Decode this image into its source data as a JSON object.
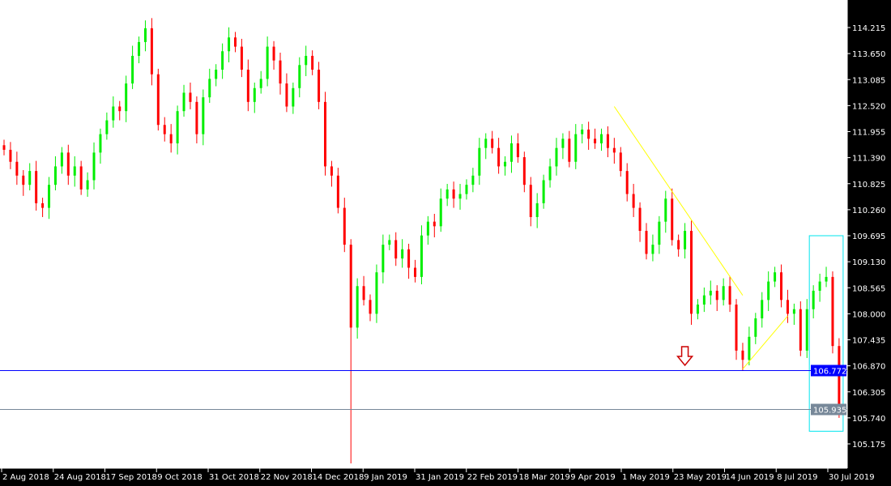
{
  "chart_data": {
    "type": "candlestick",
    "title": "",
    "ylim": [
      104.9,
      114.8
    ],
    "y_ticks": [
      "114.215",
      "113.650",
      "113.085",
      "112.520",
      "111.955",
      "111.390",
      "110.825",
      "110.260",
      "109.695",
      "109.130",
      "108.565",
      "108.000",
      "107.435",
      "106.870",
      "106.305",
      "105.740",
      "105.175"
    ],
    "x_ticks": [
      "2 Aug 2018",
      "24 Aug 2018",
      "17 Sep 2018",
      "9 Oct 2018",
      "31 Oct 2018",
      "22 Nov 2018",
      "14 Dec 2018",
      "9 Jan 2019",
      "31 Jan 2019",
      "22 Feb 2019",
      "18 Mar 2019",
      "9 Apr 2019",
      "1 May 2019",
      "23 May 2019",
      "14 Jun 2019",
      "8 Jul 2019",
      "30 Jul 2019"
    ],
    "closes": [
      111.56,
      111.3,
      111.0,
      110.8,
      111.1,
      110.4,
      110.3,
      110.8,
      111.2,
      111.5,
      111.0,
      111.2,
      110.7,
      110.9,
      111.5,
      111.9,
      112.2,
      112.5,
      112.4,
      113.0,
      113.6,
      113.9,
      114.2,
      113.2,
      112.1,
      111.9,
      111.7,
      112.4,
      112.8,
      112.6,
      111.9,
      112.7,
      113.1,
      113.3,
      113.7,
      114.0,
      113.8,
      113.3,
      112.6,
      112.9,
      113.1,
      113.8,
      113.5,
      113.0,
      112.5,
      112.9,
      113.4,
      113.6,
      113.3,
      112.6,
      111.2,
      111.0,
      110.3,
      109.5,
      107.7,
      108.6,
      108.3,
      108.0,
      108.9,
      109.5,
      109.6,
      109.2,
      109.4,
      109.0,
      108.8,
      109.7,
      110.0,
      109.9,
      110.5,
      110.7,
      110.5,
      110.6,
      110.8,
      111.0,
      111.6,
      111.8,
      111.6,
      111.2,
      111.3,
      111.7,
      111.4,
      110.8,
      110.1,
      110.4,
      110.9,
      111.2,
      111.6,
      111.8,
      111.3,
      111.9,
      112.0,
      111.8,
      111.7,
      111.9,
      111.6,
      111.5,
      111.1,
      110.6,
      110.3,
      109.8,
      109.3,
      109.5,
      110.0,
      110.5,
      109.6,
      109.4,
      109.8,
      108.0,
      108.2,
      108.4,
      108.5,
      108.3,
      108.6,
      108.2,
      107.2,
      107.0,
      107.5,
      107.9,
      108.3,
      108.7,
      108.9,
      108.3,
      108.0,
      108.1,
      107.2,
      108.1,
      108.5,
      108.7,
      108.8,
      107.3,
      105.94
    ],
    "spike_low": {
      "index": 54,
      "value": 104.75
    },
    "horizontal_lines": [
      {
        "value": 106.772,
        "label": "106.772",
        "color": "#0000ff"
      },
      {
        "value": 105.935,
        "label": "105.935",
        "color": "#778899"
      }
    ],
    "trendlines": [
      {
        "from": [
          95,
          112.5
        ],
        "to": [
          115,
          108.4
        ],
        "color": "#ffff00"
      },
      {
        "from": [
          115,
          106.8
        ],
        "to": [
          122,
          107.95
        ],
        "color": "#ffff00"
      }
    ],
    "highlight_box": {
      "from_index": 126,
      "to_index": 130,
      "top": 109.695,
      "bottom": 105.45,
      "color": "#00e5ee"
    },
    "arrow": {
      "index": 106,
      "direction": "down",
      "color": "#cc0000"
    },
    "colors": {
      "up": "#00ee00",
      "down": "#ff0000",
      "background": "#ffffff",
      "axis": "#000000"
    },
    "grid": false
  }
}
